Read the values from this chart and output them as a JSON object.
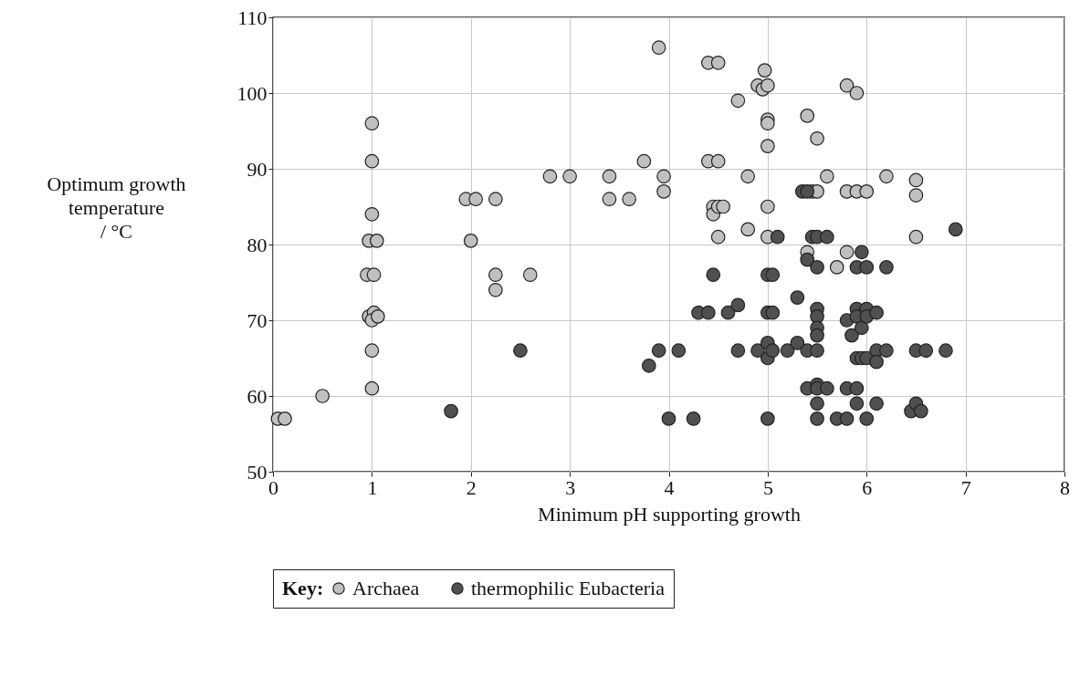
{
  "chart_data": {
    "type": "scatter",
    "xlabel": "Minimum pH supporting growth",
    "ylabel": "Optimum growth\ntemperature\n/ °C",
    "legend_title": "Key:",
    "legend": "bottom",
    "grid": true,
    "marker": "circle",
    "xlim": [
      0,
      8
    ],
    "xticks": [
      0,
      1,
      2,
      3,
      4,
      5,
      6,
      7,
      8
    ],
    "ylim": [
      50,
      110
    ],
    "yticks": [
      50,
      60,
      70,
      80,
      90,
      100,
      110
    ],
    "series": [
      {
        "name": "Archaea",
        "color": "#c0c0c0",
        "x": [
          0.05,
          0.12,
          0.5,
          1,
          1,
          1,
          0.97,
          1.05,
          0.95,
          1.02,
          0.97,
          1.02,
          1,
          1.06,
          1,
          1,
          1.95,
          2.05,
          2.25,
          2,
          2.25,
          2.25,
          2.6,
          2.8,
          3,
          3.4,
          3.4,
          3.6,
          3.75,
          3.9,
          3.95,
          3.95,
          4.4,
          4.5,
          4.4,
          4.5,
          4.45,
          4.45,
          4.5,
          4.55,
          4.5,
          4.7,
          4.8,
          4.8,
          4.9,
          4.95,
          5,
          4.97,
          5,
          5,
          5,
          5,
          5,
          5.4,
          5.5,
          5.45,
          5.5,
          5.6,
          5.4,
          5.7,
          5.8,
          5.9,
          5.8,
          5.9,
          6,
          5.8,
          6.2,
          6.5,
          6.5,
          6.5
        ],
        "values": [
          57,
          57,
          60,
          96,
          91,
          84,
          80.5,
          80.5,
          76,
          76,
          70.5,
          71,
          70,
          70.5,
          66,
          61,
          86,
          86,
          86,
          80.5,
          76,
          74,
          76,
          89,
          89,
          89,
          86,
          86,
          91,
          106,
          89,
          87,
          104,
          104,
          91,
          91,
          85,
          84,
          85,
          85,
          81,
          99,
          89,
          82,
          101,
          100.5,
          101,
          103,
          96.5,
          96,
          93,
          85,
          81,
          97,
          94,
          87,
          87,
          89,
          79,
          77,
          101,
          100,
          87,
          87,
          87,
          79,
          89,
          88.5,
          86.5,
          81
        ]
      },
      {
        "name": "thermophilic Eubacteria",
        "color": "#505050",
        "x": [
          1.8,
          2.5,
          3.8,
          3.9,
          4,
          4.1,
          4.25,
          4.3,
          4.4,
          4.45,
          4.6,
          4.7,
          4.7,
          4.9,
          5,
          5.05,
          5,
          5.05,
          5,
          5,
          5.05,
          5.1,
          5.2,
          5.3,
          5.3,
          5.35,
          5.4,
          5.4,
          5.4,
          5.4,
          5.45,
          5.5,
          5.5,
          5.5,
          5.5,
          5.5,
          5.5,
          5.5,
          5.5,
          5.5,
          5.5,
          5.5,
          5,
          5.6,
          5.6,
          5.7,
          5.8,
          5.8,
          5.85,
          5.8,
          5.9,
          5.9,
          5.9,
          5.95,
          5.95,
          5.9,
          5.95,
          6,
          5.9,
          5.9,
          6,
          6,
          6,
          6.1,
          6.1,
          6.1,
          6.1,
          6,
          6.2,
          6.2,
          6.45,
          6.5,
          6.55,
          6.5,
          6.6,
          6.8,
          6.9
        ],
        "values": [
          58,
          66,
          64,
          66,
          57,
          66,
          57,
          71,
          71,
          76,
          71,
          72,
          66,
          66,
          76,
          76,
          71,
          71,
          67,
          65,
          66,
          81,
          66,
          73,
          67,
          87,
          87,
          78,
          66,
          61,
          81,
          81,
          77,
          71.5,
          70.5,
          69,
          68,
          66,
          61.5,
          61,
          59,
          57,
          57,
          81,
          61,
          57,
          57,
          70,
          68,
          61,
          77,
          71.5,
          70.5,
          69,
          79,
          65,
          65,
          65,
          61,
          59,
          77,
          71.5,
          70.5,
          71,
          66,
          64.5,
          59,
          57,
          77,
          66,
          58,
          59,
          58,
          66,
          66,
          66,
          82
        ]
      }
    ]
  }
}
